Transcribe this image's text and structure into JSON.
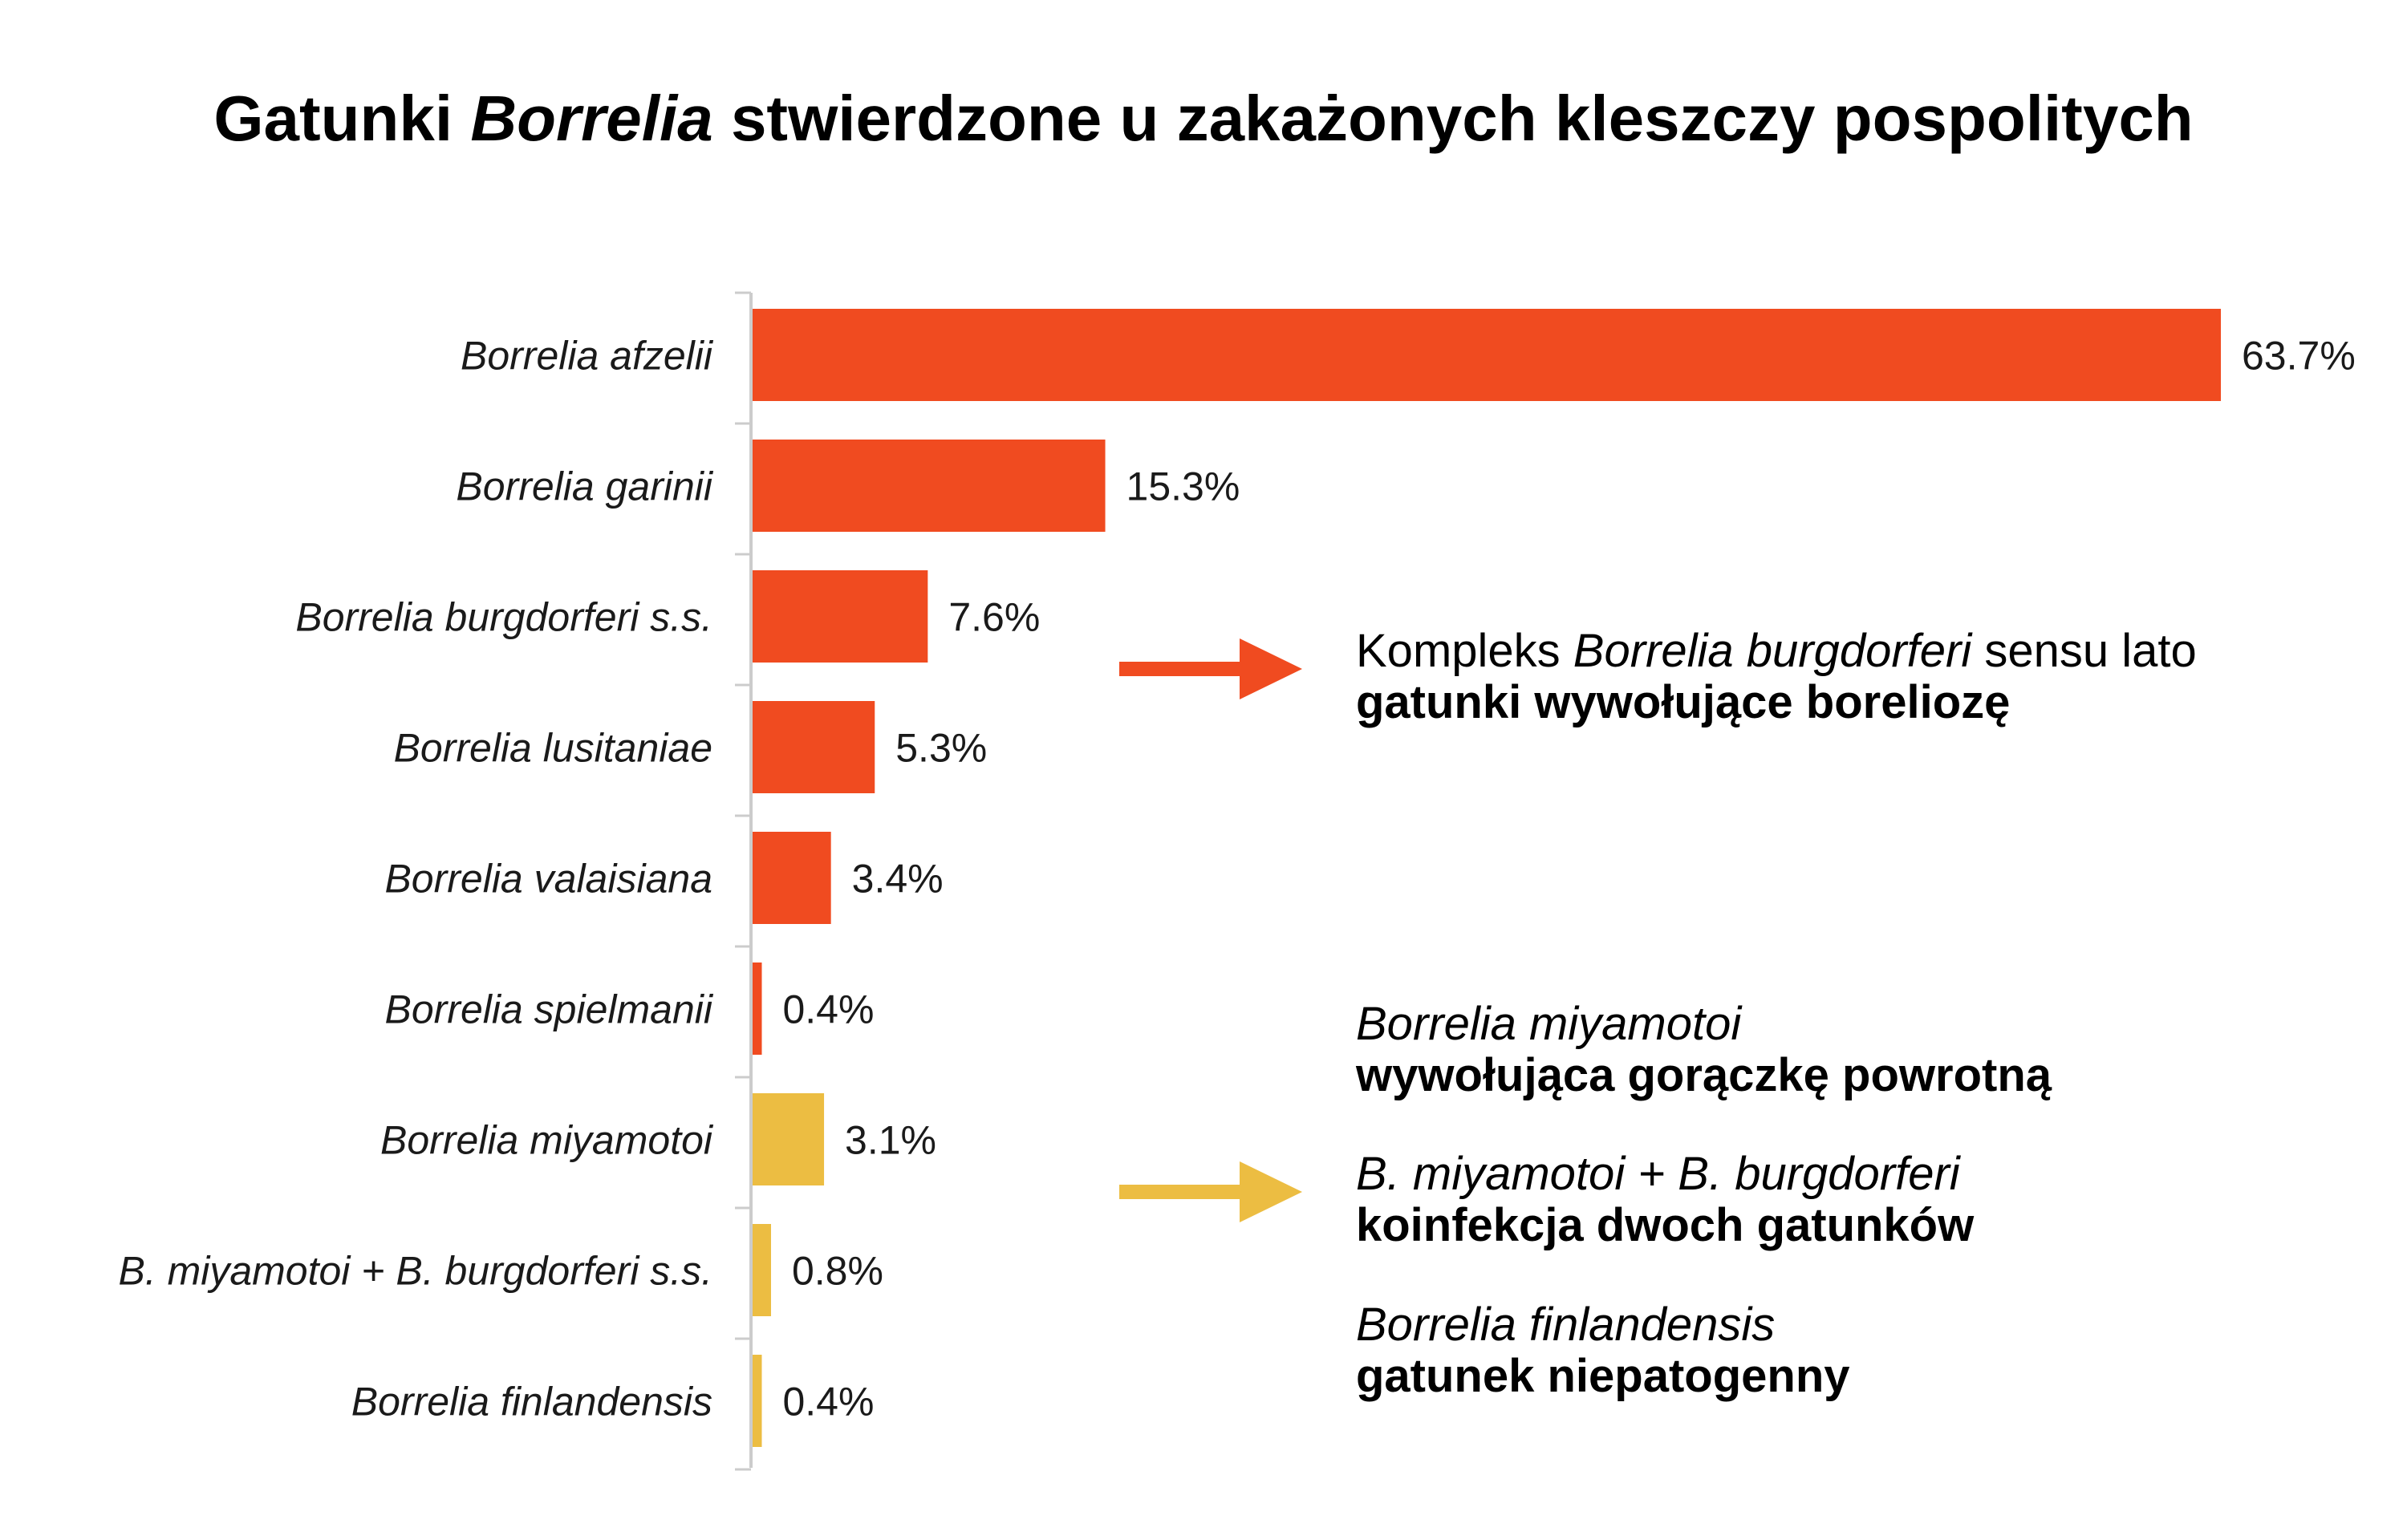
{
  "title": {
    "prefix": "Gatunki",
    "italic": "Borrelia",
    "suffix": "stwierdzone u zakażonych kleszczy pospolitych"
  },
  "colors": {
    "red": "#F04B20",
    "yellow": "#ECBD42",
    "axis": "#cccccc"
  },
  "chart_data": {
    "type": "bar",
    "orientation": "horizontal",
    "title": "Gatunki Borrelia stwierdzone u zakażonych kleszczy pospolitych",
    "categories": [
      "Borrelia afzelii",
      "Borrelia garinii",
      "Borrelia burgdorferi s.s.",
      "Borrelia lusitaniae",
      "Borrelia valaisiana",
      "Borrelia spielmanii",
      "Borrelia miyamotoi",
      "B. miyamotoi + B. burgdorferi s.s.",
      "Borrelia finlandensis"
    ],
    "values": [
      63.7,
      15.3,
      7.6,
      5.3,
      3.4,
      0.4,
      3.1,
      0.8,
      0.4
    ],
    "value_labels": [
      "63.7%",
      "15.3%",
      "7.6%",
      "5.3%",
      "3.4%",
      "0.4%",
      "3.1%",
      "0.8%",
      "0.4%"
    ],
    "bar_colors": [
      "#F04B20",
      "#F04B20",
      "#F04B20",
      "#F04B20",
      "#F04B20",
      "#F04B20",
      "#ECBD42",
      "#ECBD42",
      "#ECBD42"
    ],
    "unit": "%",
    "xlim": [
      0,
      63.7
    ],
    "grid": false,
    "legend": "none"
  },
  "annotations": {
    "complex": {
      "l1_plain_a": "Kompleks",
      "l1_italic": "Borrelia burgdorferi",
      "l1_plain_b": "sensu lato",
      "l2": "gatunki wywołujące boreliozę"
    },
    "miyamotoi": {
      "l1": "Borrelia miyamotoi",
      "l2": "wywołująca gorączkę powrotną"
    },
    "coinfection": {
      "l1": "B. miyamotoi + B. burgdorferi",
      "l2": "koinfekcja dwoch gatunków"
    },
    "finlandensis": {
      "l1": "Borrelia finlandensis",
      "l2": "gatunek niepatogenny"
    }
  }
}
